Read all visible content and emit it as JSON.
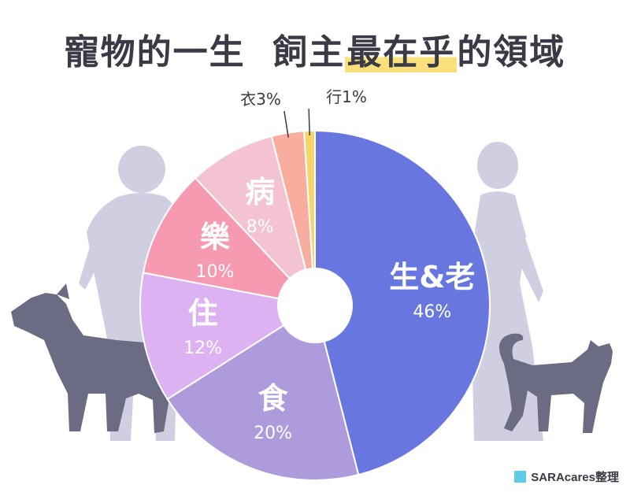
{
  "title": {
    "prefix": "寵物的一生  飼主",
    "highlight": "最在乎",
    "suffix": "的領域"
  },
  "credit": "SARAcares整理",
  "colors": {
    "silhouette_person": "#cfcfe1",
    "silhouette_animal": "#6b6b83",
    "highlight": "#f9e07a",
    "credit_swatch": "#5ecbe8"
  },
  "chart_data": {
    "type": "pie",
    "title": "寵物的一生 飼主最在乎的領域",
    "slices": [
      {
        "label": "生&老",
        "value": 46,
        "value_label": "46%",
        "color": "#6876df"
      },
      {
        "label": "食",
        "value": 20,
        "value_label": "20%",
        "color": "#ae9bdb"
      },
      {
        "label": "住",
        "value": 12,
        "value_label": "12%",
        "color": "#dcb2f2"
      },
      {
        "label": "樂",
        "value": 10,
        "value_label": "10%",
        "color": "#f59ab1"
      },
      {
        "label": "病",
        "value": 8,
        "value_label": "8%",
        "color": "#f4c3d1"
      },
      {
        "label": "衣",
        "value": 3,
        "value_label": "3%",
        "color": "#f8ad9f"
      },
      {
        "label": "行",
        "value": 1,
        "value_label": "1%",
        "color": "#f6d56a"
      }
    ]
  }
}
